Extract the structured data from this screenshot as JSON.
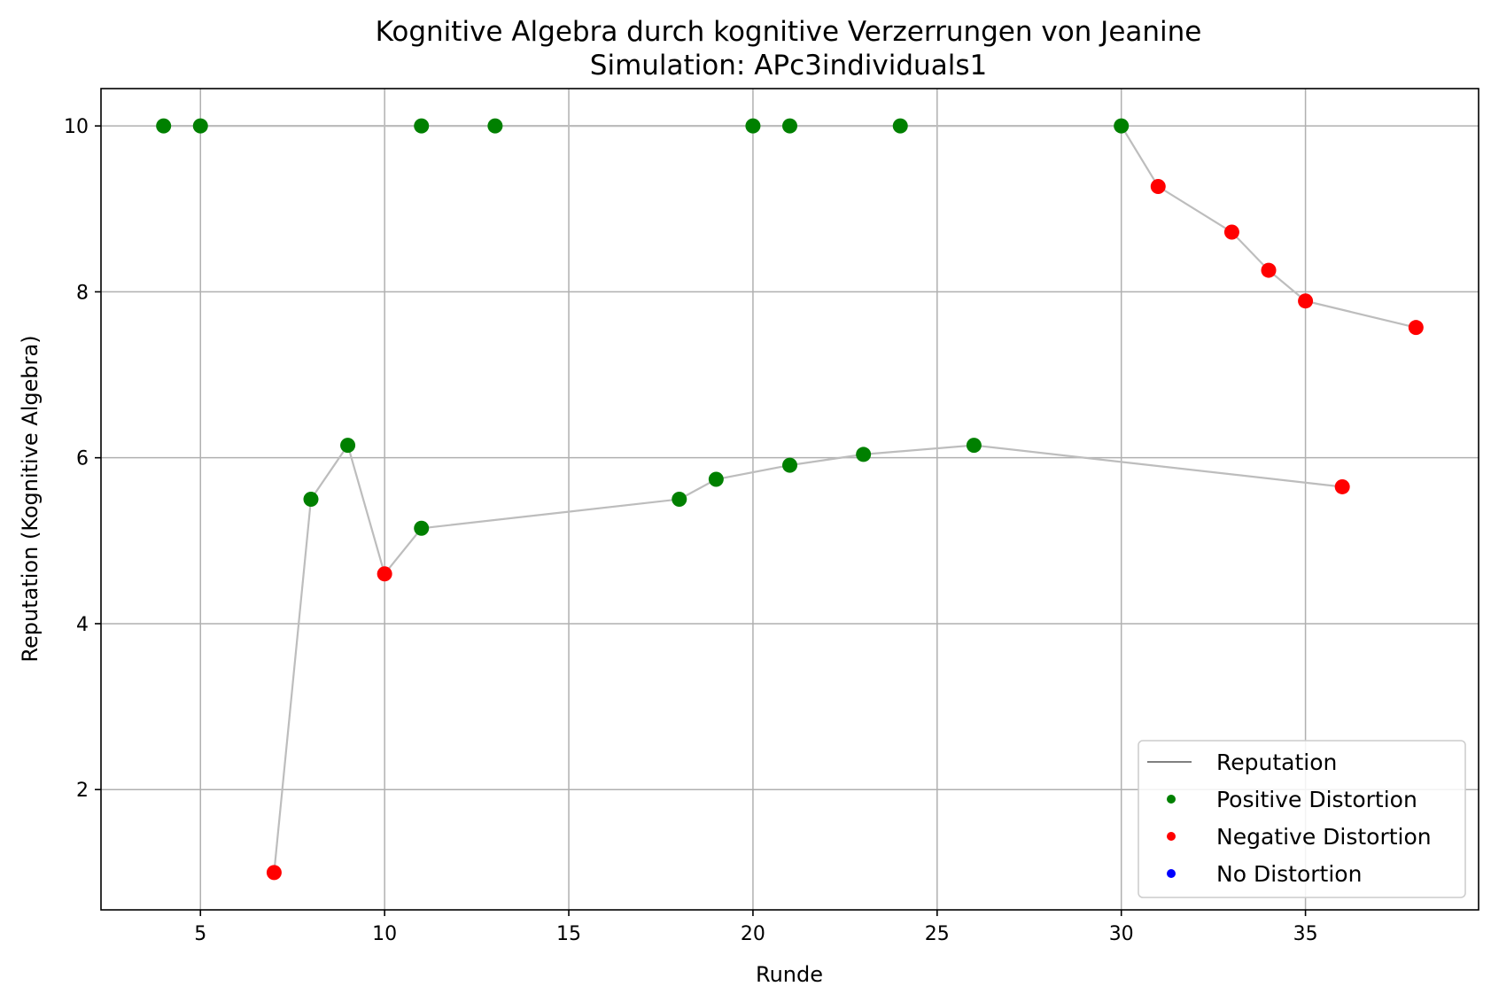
{
  "chart_data": {
    "type": "scatter",
    "title": "Kognitive Algebra durch kognitive Verzerrungen von Jeanine",
    "subtitle": "Simulation: APc3individuals1",
    "xlabel": "Runde",
    "ylabel": "Reputation (Kognitive Algebra)",
    "xlim": [
      2.3,
      39.7
    ],
    "ylim": [
      0.55,
      10.45
    ],
    "xticks": [
      5,
      10,
      15,
      20,
      25,
      30,
      35
    ],
    "yticks": [
      2,
      4,
      6,
      8,
      10
    ],
    "grid": true,
    "legend_position": "lower right",
    "lines": [
      {
        "series": "Reputation",
        "x": [
          4,
          5,
          11,
          13,
          20,
          21,
          24,
          30,
          31,
          33,
          34,
          35,
          38
        ],
        "y": [
          10,
          10,
          10,
          10,
          10,
          10,
          10,
          10,
          9.27,
          8.72,
          8.26,
          7.89,
          7.57
        ]
      },
      {
        "series": "Reputation",
        "x": [
          7,
          8,
          9,
          10,
          11,
          18,
          19,
          21,
          23,
          26,
          36
        ],
        "y": [
          1.0,
          5.5,
          6.15,
          4.6,
          5.15,
          5.5,
          5.74,
          5.91,
          6.04,
          6.15,
          5.65
        ]
      }
    ],
    "series": [
      {
        "name": "Reputation",
        "color": "#808080",
        "marker": "line"
      },
      {
        "name": "Positive Distortion",
        "color": "#008000",
        "marker": "dot",
        "points": [
          [
            4,
            10
          ],
          [
            5,
            10
          ],
          [
            11,
            10
          ],
          [
            13,
            10
          ],
          [
            20,
            10
          ],
          [
            21,
            10
          ],
          [
            24,
            10
          ],
          [
            30,
            10
          ],
          [
            8,
            5.5
          ],
          [
            9,
            6.15
          ],
          [
            11,
            5.15
          ],
          [
            18,
            5.5
          ],
          [
            19,
            5.74
          ],
          [
            21,
            5.91
          ],
          [
            23,
            6.04
          ],
          [
            26,
            6.15
          ]
        ]
      },
      {
        "name": "Negative Distortion",
        "color": "#ff0000",
        "marker": "dot",
        "points": [
          [
            31,
            9.27
          ],
          [
            33,
            8.72
          ],
          [
            34,
            8.26
          ],
          [
            35,
            7.89
          ],
          [
            38,
            7.57
          ],
          [
            7,
            1.0
          ],
          [
            10,
            4.6
          ],
          [
            36,
            5.65
          ]
        ]
      },
      {
        "name": "No Distortion",
        "color": "#0000ff",
        "marker": "dot",
        "points": []
      }
    ]
  }
}
